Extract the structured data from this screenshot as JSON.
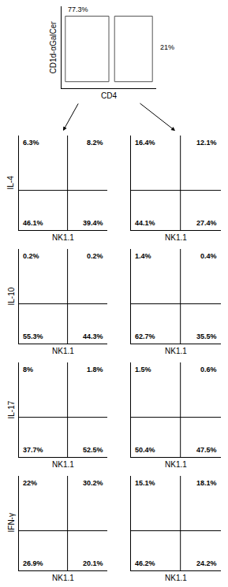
{
  "chart_data": [
    {
      "type": "gate",
      "x_label": "CD4",
      "y_label": "CD1d-αGalCer",
      "values": [
        77.3,
        21
      ],
      "value_labels": [
        "77.3%",
        "21%"
      ],
      "tick_labels": false
    },
    {
      "type": "quadrant",
      "x_label": "NK1.1",
      "y_label": "IL-4",
      "values": [
        6.3,
        8.2,
        46.1,
        39.4
      ],
      "value_labels": [
        "6.3%",
        "8.2%",
        "46.1%",
        "39.4%"
      ],
      "tick_labels": false
    },
    {
      "type": "quadrant",
      "x_label": "NK1.1",
      "values": [
        16.4,
        12.1,
        44.1,
        27.4
      ],
      "value_labels": [
        "16.4%",
        "12.1%",
        "44.1%",
        "27.4%"
      ],
      "tick_labels": false
    },
    {
      "type": "quadrant",
      "x_label": "NK1.1",
      "y_label": "IL-10",
      "values": [
        0.2,
        0.2,
        55.3,
        44.3
      ],
      "value_labels": [
        "0.2%",
        "0.2%",
        "55.3%",
        "44.3%"
      ],
      "tick_labels": false
    },
    {
      "type": "quadrant",
      "x_label": "NK1.1",
      "values": [
        1.4,
        0.4,
        62.7,
        35.5
      ],
      "value_labels": [
        "1.4%",
        "0.4%",
        "62.7%",
        "35.5%"
      ],
      "tick_labels": false
    },
    {
      "type": "quadrant",
      "x_label": "NK1.1",
      "y_label": "IL-17",
      "values": [
        8,
        1.8,
        37.7,
        52.5
      ],
      "value_labels": [
        "8%",
        "1.8%",
        "37.7%",
        "52.5%"
      ],
      "tick_labels": false
    },
    {
      "type": "quadrant",
      "x_label": "NK1.1",
      "values": [
        1.5,
        0.6,
        50.4,
        47.5
      ],
      "value_labels": [
        "1.5%",
        "0.6%",
        "50.4%",
        "47.5%"
      ],
      "tick_labels": false
    },
    {
      "type": "quadrant",
      "x_label": "NK1.1",
      "y_label": "IFN-γ",
      "values": [
        22,
        30.2,
        26.9,
        20.1
      ],
      "value_labels": [
        "22%",
        "30.2%",
        "26.9%",
        "20.1%"
      ],
      "tick_labels": false
    },
    {
      "type": "quadrant",
      "x_label": "NK1.1",
      "values": [
        15.1,
        18.1,
        46.2,
        24.2
      ],
      "value_labels": [
        "15.1%",
        "18.1%",
        "46.2%",
        "24.2%"
      ],
      "tick_labels": false
    }
  ]
}
